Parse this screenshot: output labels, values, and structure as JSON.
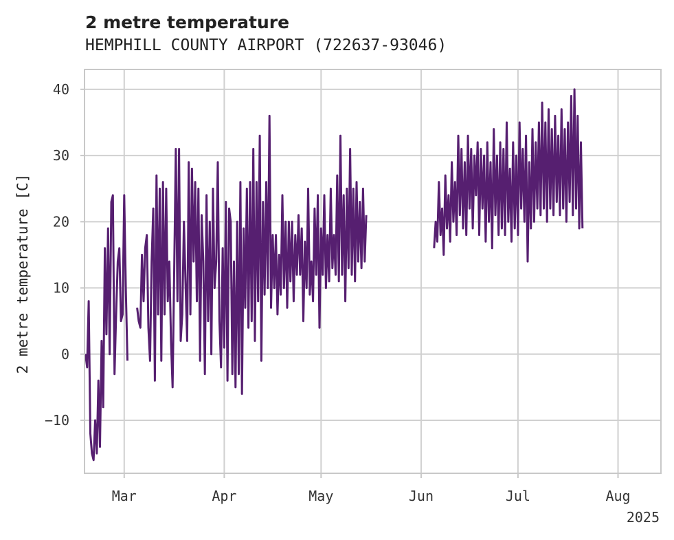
{
  "colors": {
    "series": "#561f70",
    "grid": "#d0d0d0",
    "text": "#222222"
  },
  "chart_data": {
    "type": "line",
    "title": "2 metre temperature",
    "subtitle": "HEMPHILL COUNTY AIRPORT (722637-93046)",
    "xlabel": "",
    "ylabel": "2 metre temperature [C]",
    "ylim": [
      -18,
      43
    ],
    "yticks": [
      -10,
      0,
      10,
      20,
      30,
      40
    ],
    "x_unit": "day of year 2025",
    "xlim": [
      47.7,
      226.3
    ],
    "xticks": [
      {
        "label": "Mar",
        "day": 60
      },
      {
        "label": "Apr",
        "day": 91
      },
      {
        "label": "May",
        "day": 121
      },
      {
        "label": "Jun",
        "day": 152
      },
      {
        "label": "Jul",
        "day": 182
      },
      {
        "label": "Aug",
        "day": 213
      }
    ],
    "year_label": "2025",
    "series": [
      {
        "name": "2 metre temperature",
        "segments": [
          {
            "day_start": 48,
            "step_days": 0.5,
            "values": [
              0,
              -2,
              8,
              -12,
              -15,
              -16,
              -10,
              -15,
              -4,
              -14,
              2,
              -8,
              16,
              3,
              19,
              0,
              23,
              24,
              -3,
              6,
              14,
              16,
              5,
              6,
              24,
              10,
              -1,
              "gap",
              "gap",
              "gap",
              "gap",
              "gap",
              7,
              5,
              4,
              15,
              8,
              16,
              18,
              4,
              -1,
              14,
              22,
              -4,
              27,
              6,
              25,
              -1,
              26,
              6,
              25,
              8,
              14,
              2,
              -5,
              13,
              31,
              8,
              31,
              2,
              6,
              20,
              11,
              2,
              29,
              6,
              28,
              14,
              26,
              8,
              25,
              -1,
              21,
              14,
              -3,
              24,
              5,
              20,
              0,
              25,
              10,
              14,
              29,
              5,
              -2,
              16,
              1,
              23,
              -4,
              22,
              20,
              -3,
              14,
              -5,
              20,
              -3,
              26,
              -6,
              19,
              7,
              25,
              4,
              26,
              5,
              31,
              2,
              26,
              8,
              33,
              -1,
              23,
              9,
              26,
              10,
              36,
              7,
              18,
              10,
              18,
              6,
              15,
              9,
              24,
              10,
              20,
              7,
              20,
              11,
              20,
              8,
              18,
              12,
              21,
              12,
              19,
              5,
              17,
              10,
              25,
              9,
              14,
              8,
              22,
              12,
              24,
              4,
              19,
              12,
              24,
              10,
              18,
              11,
              25,
              13,
              18,
              12,
              27,
              11,
              33,
              12,
              24,
              8,
              25,
              13,
              31,
              12,
              25,
              11,
              26,
              14,
              23,
              13,
              25,
              14,
              21
            ]
          },
          {
            "day_start": 156,
            "step_days": 0.5,
            "values": [
              16,
              20,
              17,
              26,
              18,
              22,
              15,
              27,
              19,
              24,
              17,
              29,
              20,
              26,
              18,
              33,
              21,
              31,
              19,
              29,
              18,
              33,
              22,
              31,
              19,
              30,
              24,
              32,
              18,
              31,
              22,
              30,
              17,
              32,
              20,
              29,
              16,
              34,
              21,
              30,
              18,
              32,
              19,
              31,
              18,
              35,
              20,
              28,
              17,
              32,
              19,
              30,
              18,
              35,
              22,
              31,
              20,
              33,
              14,
              29,
              19,
              34,
              20,
              32,
              22,
              35,
              21,
              38,
              22,
              35,
              20,
              37,
              22,
              34,
              21,
              36,
              23,
              33,
              21,
              37,
              22,
              34,
              20,
              35,
              23,
              39,
              21,
              40,
              22,
              36,
              19,
              32,
              19
            ]
          }
        ]
      }
    ]
  }
}
